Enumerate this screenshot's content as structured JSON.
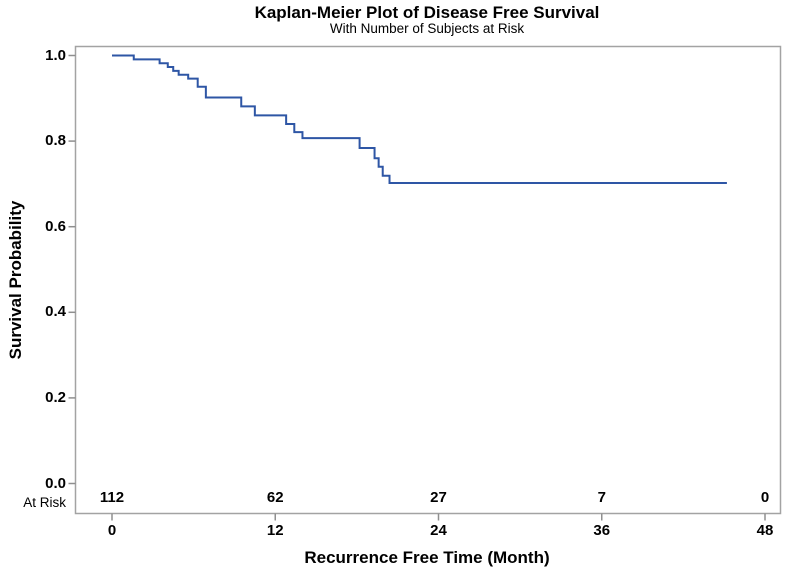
{
  "header": {
    "title": "Kaplan-Meier Plot of Disease Free Survival",
    "subtitle": "With Number of Subjects at Risk"
  },
  "chart_data": {
    "type": "line",
    "subtype": "kaplan-meier-step",
    "title": "Kaplan-Meier Plot of Disease Free Survival",
    "subtitle": "With Number of Subjects at Risk",
    "grid": false,
    "legend": "none",
    "x_axis": {
      "title": "Recurrence Free Time (Month)",
      "ticks": [
        0,
        12,
        24,
        36,
        48
      ],
      "tick_labels": [
        "0",
        "12",
        "24",
        "36",
        "48"
      ],
      "range": [
        0,
        48
      ]
    },
    "y_axis": {
      "title": "Survival Probability",
      "ticks": [
        1.0,
        0.8,
        0.6,
        0.4,
        0.2,
        0.0
      ],
      "tick_labels": [
        "1.0",
        "0.8",
        "0.6",
        "0.4",
        "0.2",
        "0.0"
      ],
      "range": [
        0.0,
        1.0
      ]
    },
    "series": [
      {
        "name": "Disease Free Survival",
        "color": "#2e56a5",
        "start": {
          "t": 0,
          "s": 1.0
        },
        "steps": [
          {
            "t": 1.6,
            "s": 0.991
          },
          {
            "t": 3.5,
            "s": 0.982
          },
          {
            "t": 4.1,
            "s": 0.973
          },
          {
            "t": 4.5,
            "s": 0.964
          },
          {
            "t": 4.9,
            "s": 0.955
          },
          {
            "t": 5.6,
            "s": 0.946
          },
          {
            "t": 6.3,
            "s": 0.927
          },
          {
            "t": 6.9,
            "s": 0.902
          },
          {
            "t": 9.5,
            "s": 0.881
          },
          {
            "t": 10.5,
            "s": 0.86
          },
          {
            "t": 12.8,
            "s": 0.84
          },
          {
            "t": 13.4,
            "s": 0.821
          },
          {
            "t": 14.0,
            "s": 0.807
          },
          {
            "t": 18.2,
            "s": 0.784
          },
          {
            "t": 19.3,
            "s": 0.76
          },
          {
            "t": 19.6,
            "s": 0.74
          },
          {
            "t": 19.9,
            "s": 0.719
          },
          {
            "t": 20.4,
            "s": 0.702
          }
        ],
        "end_time": 45.2,
        "final_survival": 0.702
      }
    ],
    "at_risk": {
      "label": "At Risk",
      "times": [
        0,
        12,
        24,
        36,
        48
      ],
      "counts": [
        "112",
        "62",
        "27",
        "7",
        "0"
      ]
    },
    "colors": {
      "curve": "#2e56a5",
      "frame": "#a3a3a3",
      "tick": "#8f8f8f",
      "text": "#000000"
    }
  }
}
